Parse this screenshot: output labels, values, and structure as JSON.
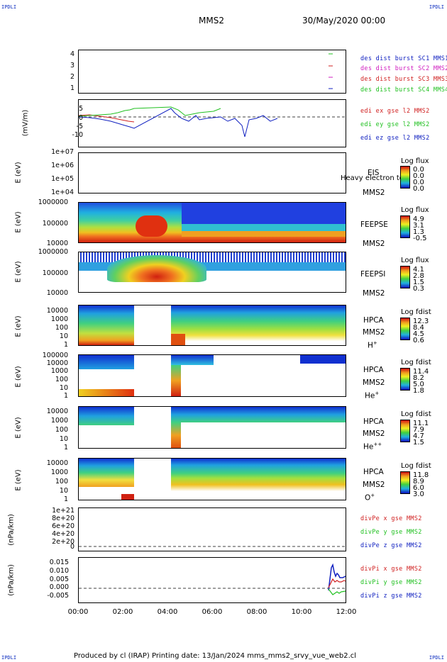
{
  "header": {
    "corner_tl": "IPDLI",
    "corner_tr": "IPDLI",
    "corner_bl": "IPDLI",
    "corner_br": "IPDLI",
    "mission": "MMS2",
    "datetime": "30/May/2020 00:00"
  },
  "footer": {
    "text": "Produced by cl (IRAP)   Printing date: 13/Jan/2024   mms_mms2_srvy_vue_web2.cl"
  },
  "xaxis": {
    "ticks": [
      "00:00",
      "02:00",
      "04:00",
      "06:00",
      "08:00",
      "10:00",
      "12:00"
    ]
  },
  "panels": {
    "p1": {
      "yticks": [
        "4",
        "3",
        "2",
        "1"
      ],
      "legend": [
        "des dist burst SC1 MMS1",
        "des dist burst SC2 MMS2",
        "des dist burst SC3 MMS3",
        "des dist burst SC4 MMS4"
      ],
      "colors": [
        "#1020c0",
        "#d020c0",
        "#d02020",
        "#20c020"
      ]
    },
    "p2": {
      "ylabel": "(mV/m)",
      "yticks": [
        "5",
        "0",
        "-5",
        "-10"
      ],
      "legend": [
        "edi ex gse l2 MMS2",
        "edi ey gse l2 MMS2",
        "edi ez gse l2 MMS2"
      ],
      "colors": [
        "#d02020",
        "#20c020",
        "#1020c0"
      ]
    },
    "p3": {
      "ylabel": "E (eV)",
      "yticks": [
        "1e+07",
        "1e+06",
        "1e+05",
        "1e+04"
      ],
      "instrument": "EIS",
      "subtitle": "Heavy electron to",
      "sc": "MMS2",
      "cbar_title": "Log flux",
      "cbar_values": [
        "0.0",
        "0.0",
        "0.0",
        "0.0"
      ]
    },
    "p4": {
      "ylabel": "E (eV)",
      "yticks": [
        "1000000",
        "100000",
        "10000"
      ],
      "instrument": "FEEPSE",
      "sc": "MMS2",
      "cbar_title": "Log flux",
      "cbar_values": [
        "4.9",
        "3.1",
        "1.3",
        "-0.5"
      ]
    },
    "p5": {
      "ylabel": "E (eV)",
      "yticks": [
        "1000000",
        "100000",
        "10000"
      ],
      "instrument": "FEEPSI",
      "sc": "MMS2",
      "cbar_title": "Log flux",
      "cbar_values": [
        "4.1",
        "2.8",
        "1.5",
        "0.3"
      ]
    },
    "p6": {
      "ylabel": "E (eV)",
      "yticks": [
        "10000",
        "1000",
        "100",
        "10",
        "1"
      ],
      "instrument": "HPCA",
      "sc": "MMS2",
      "species": "H",
      "charge": "+",
      "cbar_title": "Log fdist",
      "cbar_values": [
        "12.3",
        "8.4",
        "4.5",
        "0.6"
      ]
    },
    "p7": {
      "ylabel": "E (eV)",
      "yticks": [
        "100000",
        "10000",
        "1000",
        "100",
        "10",
        "1"
      ],
      "instrument": "HPCA",
      "sc": "MMS2",
      "species": "He",
      "charge": "+",
      "cbar_title": "Log fdist",
      "cbar_values": [
        "11.4",
        "8.2",
        "5.0",
        "1.8"
      ]
    },
    "p8": {
      "ylabel": "E (eV)",
      "yticks": [
        "10000",
        "1000",
        "100",
        "10",
        "1"
      ],
      "instrument": "HPCA",
      "sc": "MMS2",
      "species": "He",
      "charge": "++",
      "cbar_title": "Log fdist",
      "cbar_values": [
        "11.1",
        "7.9",
        "4.7",
        "1.5"
      ]
    },
    "p9": {
      "ylabel": "E (eV)",
      "yticks": [
        "10000",
        "1000",
        "100",
        "10",
        "1"
      ],
      "instrument": "HPCA",
      "sc": "MMS2",
      "species": "O",
      "charge": "+",
      "cbar_title": "Log fdist",
      "cbar_values": [
        "11.8",
        "8.9",
        "6.0",
        "3.0"
      ]
    },
    "p10": {
      "ylabel": "(nPa/km)",
      "yticks": [
        "1e+21",
        "8e+20",
        "6e+20",
        "4e+20",
        "2e+20",
        "0"
      ],
      "legend": [
        "divPe x gse MMS2",
        "divPe y gse MMS2",
        "divPe z gse MMS2"
      ],
      "colors": [
        "#d02020",
        "#20c020",
        "#1020c0"
      ]
    },
    "p11": {
      "ylabel": "(nPa/km)",
      "yticks": [
        "0.015",
        "0.010",
        "0.005",
        "0.000",
        "-0.005"
      ],
      "legend": [
        "divPi x gse MMS2",
        "divPi y gse MMS2",
        "divPi z gse MMS2"
      ],
      "colors": [
        "#d02020",
        "#20c020",
        "#1020c0"
      ]
    }
  },
  "chart_data": {
    "type": "heatmap",
    "x": [
      "00:00",
      "02:00",
      "04:00",
      "06:00",
      "08:00",
      "10:00",
      "12:00"
    ],
    "series": [
      {
        "name": "edi ex gse l2 MMS2"
      },
      {
        "name": "edi ey gse l2 MMS2"
      },
      {
        "name": "edi ez gse l2 MMS2"
      },
      {
        "name": "divPe x gse MMS2"
      },
      {
        "name": "divPe y gse MMS2"
      },
      {
        "name": "divPe z gse MMS2"
      },
      {
        "name": "divPi x gse MMS2"
      },
      {
        "name": "divPi y gse MMS2"
      },
      {
        "name": "divPi z gse MMS2"
      }
    ]
  }
}
